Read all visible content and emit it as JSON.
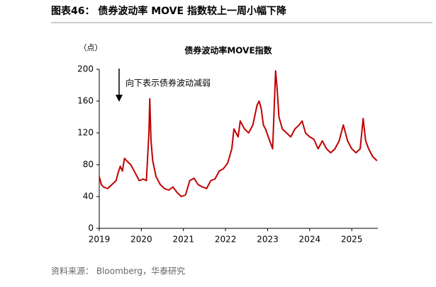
{
  "header": {
    "title": "图表46：  债券波动率 MOVE 指数较上一周小幅下降"
  },
  "chart_data": {
    "type": "line",
    "title": "债券波动率MOVE指数",
    "y_label": "（点）",
    "annotation": "向下表示债券波动减弱",
    "x": [
      2019.0,
      2019.05,
      2019.1,
      2019.2,
      2019.3,
      2019.4,
      2019.45,
      2019.5,
      2019.55,
      2019.6,
      2019.65,
      2019.75,
      2019.85,
      2019.95,
      2020.05,
      2020.12,
      2020.18,
      2020.2,
      2020.23,
      2020.27,
      2020.35,
      2020.45,
      2020.55,
      2020.65,
      2020.75,
      2020.85,
      2020.95,
      2021.05,
      2021.15,
      2021.25,
      2021.35,
      2021.45,
      2021.55,
      2021.65,
      2021.75,
      2021.85,
      2021.95,
      2022.05,
      2022.15,
      2022.2,
      2022.3,
      2022.35,
      2022.45,
      2022.55,
      2022.65,
      2022.75,
      2022.8,
      2022.85,
      2022.9,
      2022.95,
      2023.05,
      2023.12,
      2023.19,
      2023.22,
      2023.27,
      2023.35,
      2023.45,
      2023.55,
      2023.65,
      2023.75,
      2023.82,
      2023.9,
      2024.0,
      2024.1,
      2024.2,
      2024.3,
      2024.4,
      2024.5,
      2024.6,
      2024.7,
      2024.8,
      2024.9,
      2025.0,
      2025.1,
      2025.2,
      2025.27,
      2025.33,
      2025.4,
      2025.5,
      2025.6
    ],
    "series": [
      {
        "name": "MOVE",
        "color": "#c00000",
        "values": [
          65,
          55,
          52,
          50,
          55,
          60,
          70,
          78,
          72,
          88,
          85,
          80,
          70,
          60,
          62,
          60,
          120,
          163,
          110,
          85,
          65,
          55,
          50,
          48,
          52,
          45,
          40,
          42,
          60,
          63,
          55,
          52,
          50,
          60,
          62,
          72,
          75,
          82,
          100,
          125,
          115,
          135,
          125,
          120,
          130,
          155,
          160,
          150,
          130,
          125,
          110,
          100,
          198,
          180,
          140,
          125,
          120,
          115,
          125,
          130,
          135,
          120,
          115,
          112,
          100,
          110,
          100,
          95,
          100,
          110,
          130,
          110,
          100,
          95,
          100,
          138,
          110,
          100,
          90,
          85
        ]
      }
    ],
    "xlim": [
      2019,
      2025.62
    ],
    "xticks": [
      2019,
      2020,
      2021,
      2022,
      2023,
      2024,
      2025
    ],
    "ylim": [
      0,
      200
    ],
    "yticks": [
      0,
      40,
      80,
      120,
      160,
      200
    ]
  },
  "source": "资料来源：  Bloomberg，华泰研究"
}
